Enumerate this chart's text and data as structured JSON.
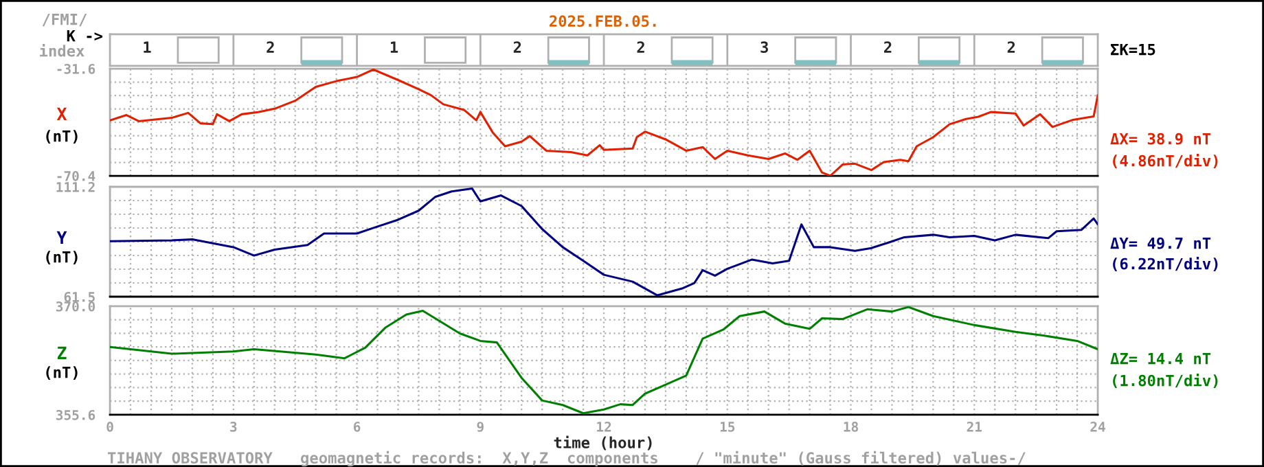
{
  "chart_data": [
    {
      "type": "other",
      "title": "2025.FEB.05.",
      "categories": [
        null,
        null,
        null,
        null,
        null,
        null,
        null,
        null
      ],
      "values": [
        1,
        2,
        1,
        2,
        2,
        3,
        2,
        2
      ],
      "colors": [
        null,
        "#80c0c0",
        null,
        "#80c0c0",
        "#80c0c0",
        "#80c0c0",
        "#80c0c0",
        "#80c0c0"
      ],
      "annotations": [
        "/FMI/",
        "K ->",
        "index",
        "ΣK=15"
      ],
      "data_labels": true
    },
    {
      "type": "line",
      "ylabel": "X",
      "xlim": [
        0,
        24
      ],
      "xticks": [
        0,
        3,
        6,
        9,
        12,
        15,
        18,
        21,
        24
      ],
      "ylim": [
        -70.4,
        -31.6
      ],
      "yticks": [
        -70.4,
        -31.6
      ],
      "tick_labels": "y",
      "grid": true,
      "annotations": [
        "(nT)",
        "ΔX= 38.9 nT",
        "(4.86nT/div)"
      ],
      "series": [
        {
          "color": "#e02000",
          "x": [
            0,
            0.4,
            0.7,
            1.5,
            1.9,
            2.2,
            2.5,
            2.6,
            2.9,
            3.2,
            3.6,
            4.0,
            4.5,
            5.0,
            5.5,
            6.0,
            6.4,
            7.0,
            7.5,
            7.8,
            8.1,
            8.6,
            8.9,
            9.0,
            9.3,
            9.6,
            10.0,
            10.2,
            10.6,
            11.2,
            11.6,
            11.9,
            12.0,
            12.7,
            12.8,
            13.0,
            13.5,
            14.0,
            14.4,
            14.7,
            15.0,
            15.5,
            16.0,
            16.4,
            16.7,
            17.0,
            17.3,
            17.5,
            17.8,
            18.1,
            18.5,
            18.8,
            19.2,
            19.4,
            19.6,
            20.0,
            20.4,
            20.8,
            21.1,
            21.4,
            22.0,
            22.2,
            22.6,
            22.9,
            23.4,
            23.9,
            24.0
          ],
          "values": [
            -50.3,
            -48.4,
            -50.6,
            -49.4,
            -47.6,
            -51.4,
            -51.7,
            -48.1,
            -50.6,
            -48.1,
            -47.3,
            -46.1,
            -43.2,
            -38.2,
            -36.1,
            -34.6,
            -31.9,
            -35.7,
            -39.0,
            -41.2,
            -44.5,
            -46.5,
            -50.3,
            -47.3,
            -54.7,
            -59.7,
            -58.0,
            -56.0,
            -61.3,
            -61.8,
            -63.0,
            -59.3,
            -61.0,
            -60.5,
            -56.4,
            -54.4,
            -57.2,
            -61.3,
            -60.0,
            -64.3,
            -61.3,
            -63.0,
            -64.3,
            -62.3,
            -64.6,
            -61.3,
            -69.2,
            -70.4,
            -66.3,
            -66.0,
            -68.3,
            -65.4,
            -64.6,
            -65.1,
            -59.7,
            -56.4,
            -51.7,
            -49.8,
            -49.0,
            -47.3,
            -47.8,
            -52.2,
            -48.1,
            -52.7,
            -50.1,
            -48.9,
            -41.2
          ]
        }
      ]
    },
    {
      "type": "line",
      "ylabel": "Y",
      "xlim": [
        0,
        24
      ],
      "xticks": [
        0,
        3,
        6,
        9,
        12,
        15,
        18,
        21,
        24
      ],
      "ylim": [
        61.5,
        111.2
      ],
      "yticks": [
        61.5,
        111.2
      ],
      "tick_labels": "y",
      "grid": true,
      "annotations": [
        "(nT)",
        "ΔY= 49.7 nT",
        "(6.22nT/div)"
      ],
      "series": [
        {
          "color": "#000080",
          "x": [
            0,
            1.5,
            2.0,
            3.0,
            3.5,
            4.0,
            4.8,
            5.2,
            6.0,
            6.4,
            7.0,
            7.5,
            7.9,
            8.3,
            8.8,
            9.0,
            9.5,
            10.0,
            10.5,
            11.0,
            11.5,
            12.0,
            12.7,
            13.0,
            13.3,
            13.9,
            14.2,
            14.4,
            14.7,
            15.0,
            15.6,
            16.1,
            16.5,
            16.8,
            17.1,
            17.5,
            18.1,
            18.5,
            18.9,
            19.3,
            20.0,
            20.4,
            21.0,
            21.5,
            22.0,
            22.8,
            23.0,
            23.6,
            23.9,
            24.0
          ],
          "values": [
            86.6,
            87.0,
            87.4,
            83.9,
            80.1,
            82.8,
            84.9,
            90.1,
            90.1,
            92.6,
            96.3,
            100.4,
            106.6,
            109.1,
            110.4,
            104.6,
            107.3,
            102.5,
            92.1,
            83.9,
            77.7,
            71.4,
            68.3,
            65.2,
            62.1,
            65.2,
            67.7,
            73.5,
            71.0,
            74.1,
            78.3,
            76.6,
            77.7,
            94.2,
            83.9,
            83.9,
            82.2,
            83.5,
            85.9,
            88.4,
            89.5,
            88.4,
            89.0,
            87.0,
            89.5,
            88.0,
            91.1,
            91.7,
            96.9,
            94.2
          ]
        }
      ]
    },
    {
      "type": "line",
      "ylabel": "Z",
      "xlabel": "time (hour)",
      "xlim": [
        0,
        24
      ],
      "xticks": [
        0,
        3,
        6,
        9,
        12,
        15,
        18,
        21,
        24
      ],
      "ylim": [
        355.6,
        370.0
      ],
      "yticks": [
        {
          "value": 355.6,
          "label": "355.6"
        },
        {
          "value": 370,
          "label": "370.0"
        }
      ],
      "grid": true,
      "annotations": [
        "(nT)",
        "ΔZ= 14.4 nT",
        "(1.80nT/div)",
        "TIHANY OBSERVATORY   geomagnetic records:  X,Y,Z  components    / \"minute\" (Gauss filtered) values-/"
      ],
      "series": [
        {
          "color": "#008000",
          "x": [
            0,
            1.5,
            3.0,
            3.5,
            5.0,
            5.7,
            6.2,
            6.7,
            7.2,
            7.6,
            8.5,
            9.0,
            9.4,
            10.0,
            10.5,
            11.0,
            11.5,
            12.0,
            12.4,
            12.7,
            13.0,
            13.5,
            14.0,
            14.4,
            14.9,
            15.3,
            15.9,
            16.4,
            17.0,
            17.3,
            17.8,
            18.4,
            19.0,
            19.4,
            20.0,
            21.0,
            22.0,
            22.7,
            23.5,
            24.0
          ],
          "values": [
            364.6,
            363.7,
            364.0,
            364.3,
            363.6,
            363.1,
            364.5,
            367.2,
            368.9,
            369.4,
            366.4,
            365.4,
            365.2,
            360.5,
            357.5,
            356.9,
            355.8,
            356.3,
            357.0,
            356.9,
            358.4,
            359.6,
            360.8,
            365.7,
            366.9,
            368.7,
            369.3,
            367.7,
            367.0,
            368.4,
            368.3,
            369.6,
            369.3,
            369.9,
            368.7,
            367.5,
            366.6,
            366.1,
            365.4,
            364.3
          ]
        }
      ]
    }
  ]
}
